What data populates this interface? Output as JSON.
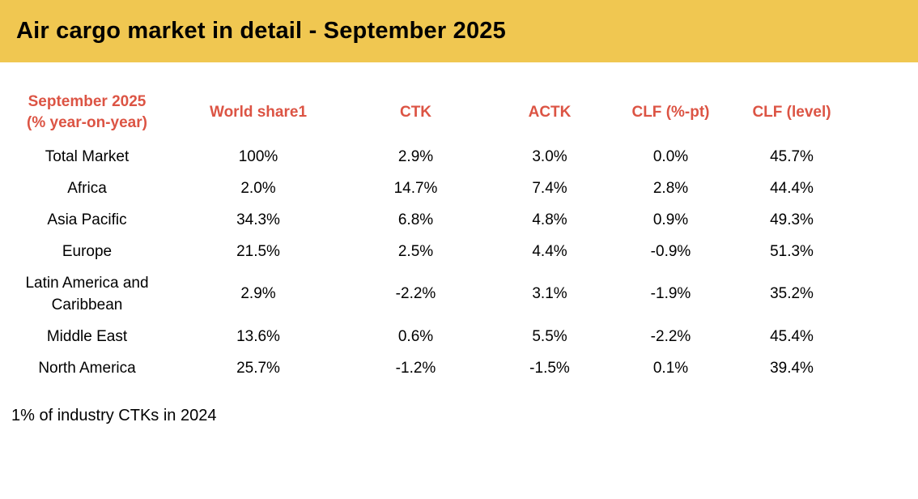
{
  "banner": {
    "title": "Air cargo market in detail - September 2025"
  },
  "colors": {
    "banner_background": "#F0C751",
    "header_text": "#DC5444",
    "body_text": "#000000"
  },
  "table_header": {
    "label_line1": "September 2025",
    "label_line2": "(% year-on-year)"
  },
  "chart_data": {
    "type": "table",
    "title": "Air cargo market in detail - September 2025",
    "row_header_column": "September 2025 (% year-on-year)",
    "value_columns": [
      "World share1",
      "CTK",
      "ACTK",
      "CLF (%-pt)",
      "CLF (level)"
    ],
    "rows": [
      {
        "region": "Total Market",
        "values": [
          "100%",
          "2.9%",
          "3.0%",
          "0.0%",
          "45.7%"
        ]
      },
      {
        "region": "Africa",
        "values": [
          "2.0%",
          "14.7%",
          "7.4%",
          "2.8%",
          "44.4%"
        ]
      },
      {
        "region": "Asia Pacific",
        "values": [
          "34.3%",
          "6.8%",
          "4.8%",
          "0.9%",
          "49.3%"
        ]
      },
      {
        "region": "Europe",
        "values": [
          "21.5%",
          "2.5%",
          "4.4%",
          "-0.9%",
          "51.3%"
        ]
      },
      {
        "region": "Latin America and Caribbean",
        "values": [
          "2.9%",
          "-2.2%",
          "3.1%",
          "-1.9%",
          "35.2%"
        ]
      },
      {
        "region": "Middle East",
        "values": [
          "13.6%",
          "0.6%",
          "5.5%",
          "-2.2%",
          "45.4%"
        ]
      },
      {
        "region": "North America",
        "values": [
          "25.7%",
          "-1.2%",
          "-1.5%",
          "0.1%",
          "39.4%"
        ]
      }
    ],
    "footnote": "1% of industry CTKs in 2024",
    "layout": {
      "grid": false,
      "header_position": "top"
    }
  },
  "footnote": "1% of industry CTKs in 2024"
}
